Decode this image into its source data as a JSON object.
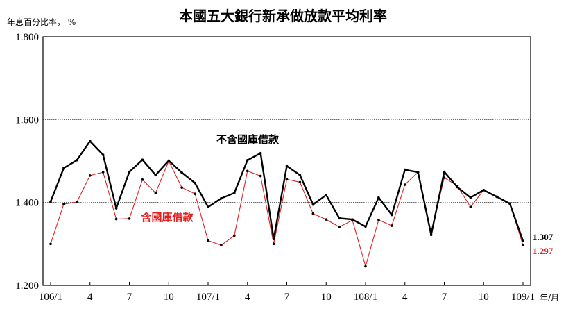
{
  "chart_data": {
    "type": "line",
    "title": "本國五大銀行新承做放款平均利率",
    "ylabel": "年息百分比率， %",
    "xlabel": "年/月",
    "ylim": [
      1.2,
      1.8
    ],
    "yticks": [
      "1.200",
      "1.400",
      "1.600",
      "1.800"
    ],
    "grid": "horizontal dotted at 1.400 and 1.600",
    "x_tick_labels": [
      "106/1",
      "4",
      "7",
      "10",
      "107/1",
      "4",
      "7",
      "10",
      "108/1",
      "4",
      "7",
      "10",
      "109/1"
    ],
    "x": [
      "106/1",
      "106/2",
      "106/3",
      "106/4",
      "106/5",
      "106/6",
      "106/7",
      "106/8",
      "106/9",
      "106/10",
      "106/11",
      "106/12",
      "107/1",
      "107/2",
      "107/3",
      "107/4",
      "107/5",
      "107/6",
      "107/7",
      "107/8",
      "107/9",
      "107/10",
      "107/11",
      "107/12",
      "108/1",
      "108/2",
      "108/3",
      "108/4",
      "108/5",
      "108/6",
      "108/7",
      "108/8",
      "108/9",
      "108/10",
      "108/11",
      "108/12",
      "109/1"
    ],
    "series": [
      {
        "name": "不含國庫借款",
        "color": "#000000",
        "values": [
          1.402,
          1.483,
          1.502,
          1.548,
          1.515,
          1.386,
          1.474,
          1.503,
          1.466,
          1.501,
          1.472,
          1.447,
          1.389,
          1.41,
          1.423,
          1.502,
          1.519,
          1.312,
          1.488,
          1.466,
          1.395,
          1.418,
          1.362,
          1.359,
          1.342,
          1.412,
          1.37,
          1.479,
          1.473,
          1.322,
          1.474,
          1.437,
          1.412,
          1.43,
          1.414,
          1.397,
          1.307
        ],
        "end_label": "1.307"
      },
      {
        "name": "含國庫借款",
        "color": "#e02020",
        "values": [
          1.3,
          1.396,
          1.401,
          1.465,
          1.473,
          1.36,
          1.361,
          1.455,
          1.423,
          1.5,
          1.436,
          1.421,
          1.308,
          1.297,
          1.32,
          1.476,
          1.464,
          1.3,
          1.456,
          1.449,
          1.373,
          1.359,
          1.341,
          1.357,
          1.246,
          1.358,
          1.344,
          1.443,
          1.473,
          1.328,
          1.46,
          1.44,
          1.389,
          1.43,
          1.414,
          1.397,
          1.297
        ],
        "end_label": "1.297"
      }
    ]
  }
}
